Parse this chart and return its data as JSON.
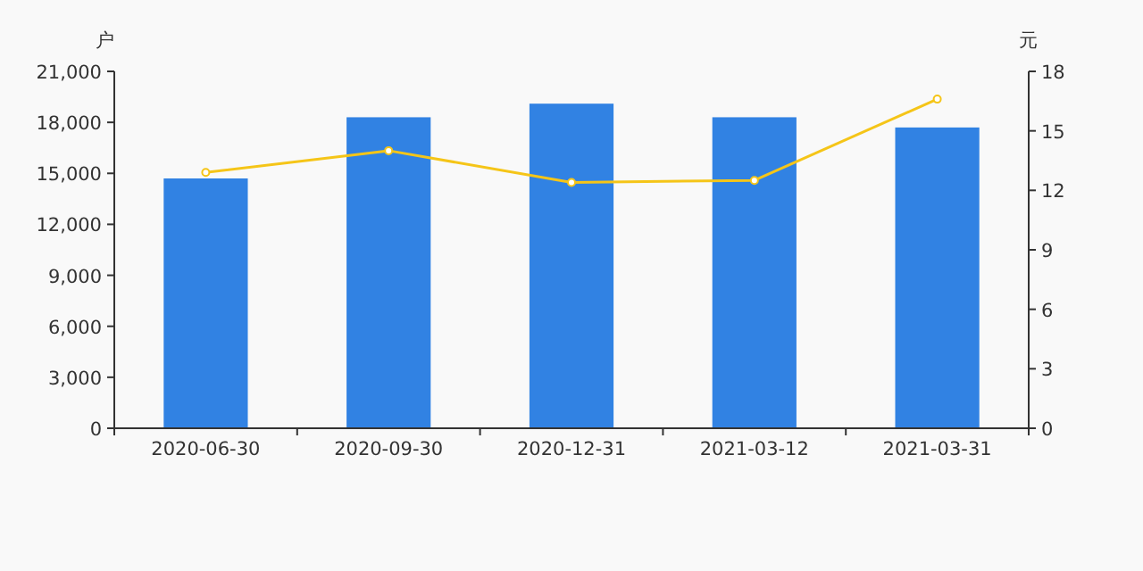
{
  "chart_data": {
    "type": "bar",
    "ylabel": "户",
    "y2label": "元",
    "categories": [
      "2020-06-30",
      "2020-09-30",
      "2020-12-31",
      "2021-03-12",
      "2021-03-31"
    ],
    "series": [
      {
        "color": "#3182e3",
        "values": [
          14700,
          18300,
          19100,
          18300,
          17700
        ]
      },
      {
        "type": "line",
        "axis": "y2",
        "color": "#f5c518",
        "marker": "circle",
        "values": [
          12.9,
          14.0,
          12.4,
          12.5,
          16.6
        ]
      }
    ],
    "ylim": [
      0,
      21000
    ],
    "yticks": [
      {
        "value": 0,
        "label": "0"
      },
      {
        "value": 3000,
        "label": "3,000"
      },
      {
        "value": 6000,
        "label": "6,000"
      },
      {
        "value": 9000,
        "label": "9,000"
      },
      {
        "value": 12000,
        "label": "12,000"
      },
      {
        "value": 15000,
        "label": "15,000"
      },
      {
        "value": 18000,
        "label": "18,000"
      },
      {
        "value": 21000,
        "label": "21,000"
      }
    ],
    "y2lim": [
      0,
      18
    ],
    "y2ticks": [
      0,
      3,
      6,
      9,
      12,
      15,
      18
    ],
    "grid": false
  }
}
